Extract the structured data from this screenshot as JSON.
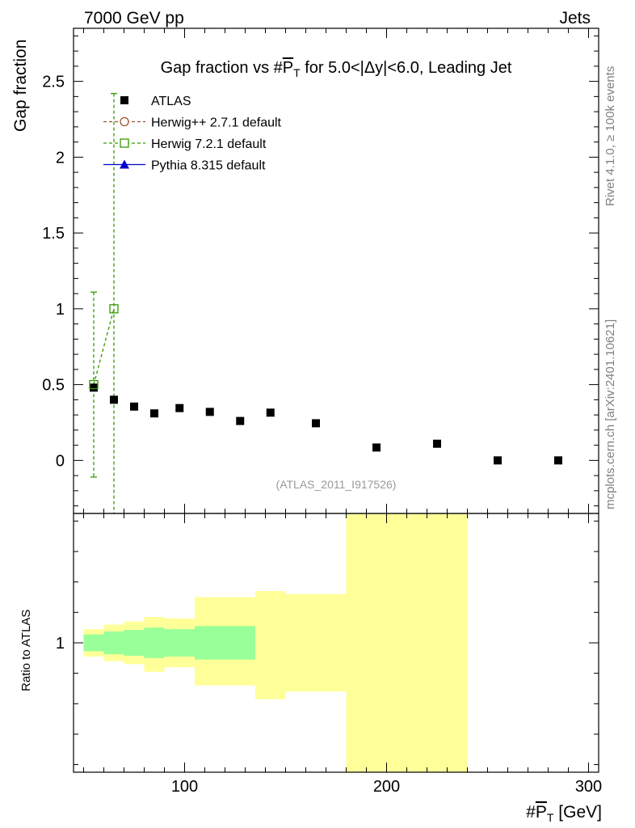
{
  "header": {
    "left": "7000 GeV pp",
    "right": "Jets"
  },
  "side_labels": {
    "rivet": "Rivet 4.1.0, ≥ 100k events",
    "mcplots": "mcplots.cern.ch [arXiv:2401.10621]"
  },
  "chart_data": {
    "type": "scatter",
    "title": "Gap fraction vs #P_T for 5.0<|Δy|<6.0, Leading Jet",
    "title_parts": {
      "pre": "Gap fraction vs #",
      "symbol": "P",
      "sub": "T",
      "post": " for 5.0<|Δy|<6.0, Leading Jet"
    },
    "ylabel": "Gap fraction",
    "ratio_ylabel": "Ratio to ATLAS",
    "xlabel_parts": {
      "pre": "#",
      "symbol": "P",
      "sub": "T",
      "post": " [GeV]"
    },
    "watermark": "(ATLAS_2011_I917526)",
    "xlim": [
      45,
      305
    ],
    "ylim": [
      -0.35,
      2.85
    ],
    "ratio_ylim": [
      0.15,
      1.85
    ],
    "x_ticks": [
      100,
      200,
      300
    ],
    "x_tick_labels": [
      "100",
      "200",
      "300"
    ],
    "y_ticks": [
      0,
      0.5,
      1,
      1.5,
      2,
      2.5
    ],
    "y_tick_labels": [
      "0",
      "0.5",
      "1",
      "1.5",
      "2",
      "2.5"
    ],
    "ratio_y_ticks": [
      1
    ],
    "ratio_y_tick_labels": [
      "1"
    ],
    "legend": [
      {
        "label": "ATLAS",
        "marker": "filled-square",
        "color": "#000000"
      },
      {
        "label": "Herwig++ 2.7.1 default",
        "marker": "open-circle",
        "color": "#a0522d"
      },
      {
        "label": "Herwig 7.2.1 default",
        "marker": "open-square",
        "color": "#339900"
      },
      {
        "label": "Pythia 8.315 default",
        "marker": "filled-triangle",
        "color": "#0000cc"
      }
    ],
    "series": [
      {
        "name": "ATLAS",
        "color": "#000000",
        "x": [
          55,
          65,
          75,
          85,
          97.5,
          112.5,
          127.5,
          142.5,
          165,
          195,
          225,
          255,
          285
        ],
        "y": [
          0.48,
          0.4,
          0.355,
          0.31,
          0.345,
          0.32,
          0.26,
          0.315,
          0.245,
          0.085,
          0.11,
          0.0,
          0.0
        ]
      },
      {
        "name": "Herwig 7.2.1 default",
        "color": "#339900",
        "x": [
          55,
          65
        ],
        "y": [
          0.5,
          1.0
        ],
        "yerr_low": [
          0.61,
          1.35
        ],
        "yerr_high": [
          0.61,
          1.42
        ]
      }
    ],
    "ratio_bands": {
      "bins": [
        [
          50,
          60
        ],
        [
          60,
          70
        ],
        [
          70,
          80
        ],
        [
          80,
          90
        ],
        [
          90,
          105
        ],
        [
          105,
          120
        ],
        [
          120,
          135
        ],
        [
          135,
          150
        ],
        [
          150,
          180
        ],
        [
          180,
          240
        ]
      ],
      "stat_low": [
        0.945,
        0.925,
        0.915,
        0.9,
        0.91,
        0.89,
        0.89,
        1.0,
        1.0,
        1.0
      ],
      "stat_high": [
        1.055,
        1.075,
        1.085,
        1.1,
        1.09,
        1.11,
        1.11,
        1.0,
        1.0,
        1.0
      ],
      "total_low": [
        0.91,
        0.88,
        0.86,
        0.81,
        0.84,
        0.72,
        0.72,
        0.63,
        0.68,
        0.15
      ],
      "total_high": [
        1.09,
        1.12,
        1.14,
        1.17,
        1.16,
        1.3,
        1.3,
        1.34,
        1.32,
        1.85
      ],
      "stat_color": "#99ff99",
      "total_color": "#ffff99"
    }
  }
}
